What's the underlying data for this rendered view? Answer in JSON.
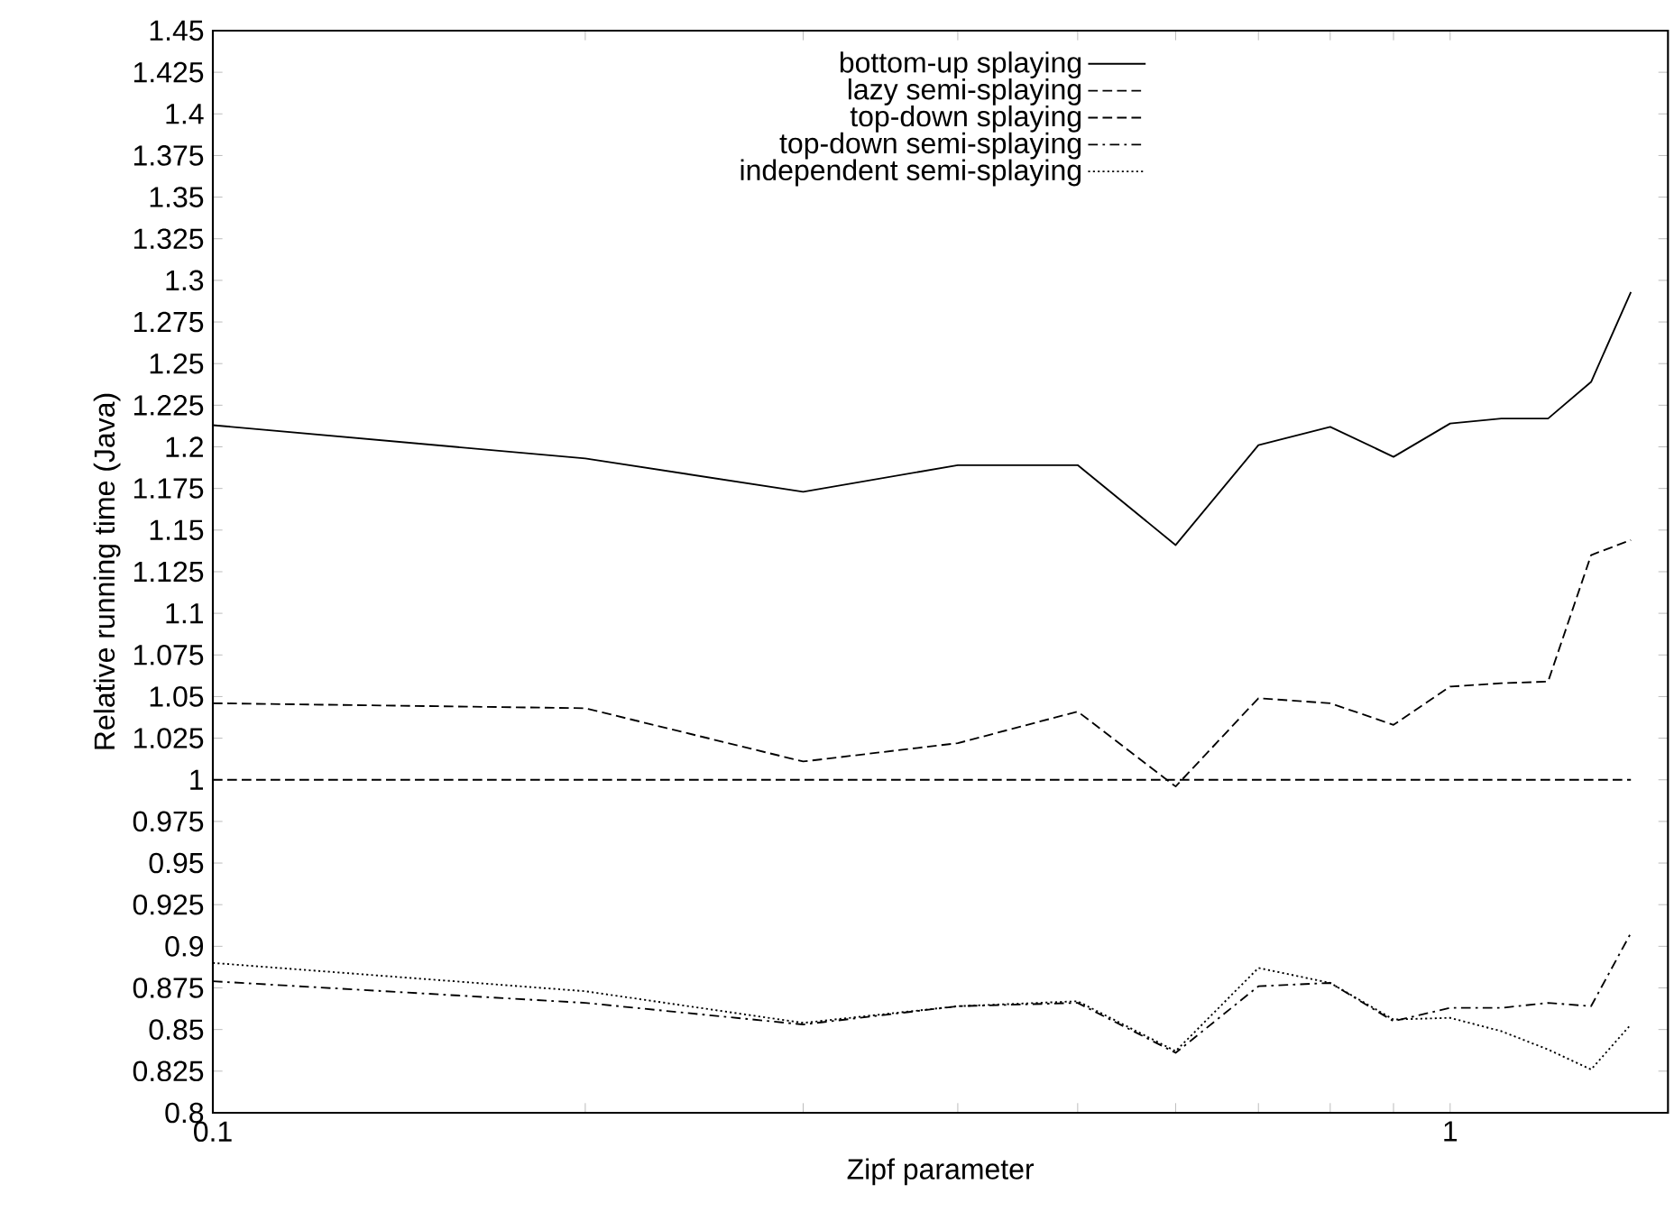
{
  "chart_data": {
    "type": "line",
    "xlabel": "Zipf parameter",
    "ylabel": "Relative running time (Java)",
    "log": "x",
    "legend": "top",
    "grid": false,
    "xlim": [
      0.1,
      1.5
    ],
    "ylim": [
      0.8,
      1.45
    ],
    "xticks": [
      0.1,
      {
        "value": 0.2,
        "label": null
      },
      {
        "value": 0.3,
        "label": null
      },
      {
        "value": 0.4,
        "label": null
      },
      {
        "value": 0.5,
        "label": null
      },
      {
        "value": 0.6,
        "label": null
      },
      {
        "value": 0.7,
        "label": null
      },
      {
        "value": 0.8,
        "label": null
      },
      {
        "value": 0.9,
        "label": null
      },
      1
    ],
    "yticks": [
      0.8,
      0.825,
      0.85,
      0.875,
      0.9,
      0.925,
      0.95,
      0.975,
      1,
      1.025,
      1.05,
      1.075,
      1.1,
      1.125,
      1.15,
      1.175,
      1.2,
      1.225,
      1.25,
      1.275,
      1.3,
      1.325,
      1.35,
      1.375,
      1.4,
      1.425,
      1.45
    ],
    "x": [
      0.1,
      0.2,
      0.3,
      0.4,
      0.5,
      0.6,
      0.7,
      0.8,
      0.9,
      1.0,
      1.1,
      1.2,
      1.3,
      1.4
    ],
    "series": [
      {
        "name": "bottom-up splaying",
        "color": "#000000",
        "line_style": "solid",
        "values": [
          1.213,
          1.193,
          1.173,
          1.189,
          1.189,
          1.141,
          1.201,
          1.212,
          1.194,
          1.214,
          1.217,
          1.217,
          1.239,
          1.293
        ]
      },
      {
        "name": "lazy semi-splaying",
        "color": "#000000",
        "line_style": "dashed",
        "values": [
          1.046,
          1.043,
          1.011,
          1.022,
          1.041,
          0.996,
          1.049,
          1.046,
          1.033,
          1.056,
          1.058,
          1.059,
          1.135,
          1.144
        ]
      },
      {
        "name": "top-down splaying",
        "color": "#000000",
        "line_style": "dashed",
        "values": [
          1,
          1,
          1,
          1,
          1,
          1,
          1,
          1,
          1,
          1,
          1,
          1,
          1,
          1
        ]
      },
      {
        "name": "top-down semi-splaying",
        "color": "#000000",
        "line_style": "dashdot",
        "values": [
          0.879,
          0.866,
          0.853,
          0.864,
          0.866,
          0.836,
          0.876,
          0.878,
          0.855,
          0.863,
          0.863,
          0.866,
          0.864,
          0.908
        ]
      },
      {
        "name": "independent semi-splaying",
        "color": "#000000",
        "line_style": "dotted",
        "values": [
          0.89,
          0.873,
          0.854,
          0.864,
          0.867,
          0.837,
          0.887,
          0.878,
          0.856,
          0.857,
          0.849,
          0.838,
          0.826,
          0.853
        ]
      }
    ]
  }
}
